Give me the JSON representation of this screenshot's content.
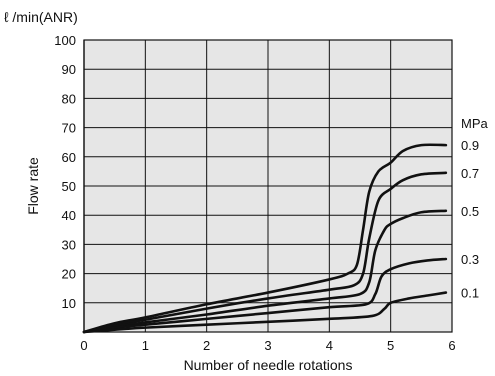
{
  "chart_data": {
    "type": "line",
    "unit_label": "ℓ /min(ANR)",
    "xlabel": "Number of needle rotations",
    "ylabel": "Flow rate",
    "series_unit": "MPa",
    "xlim": [
      0,
      6
    ],
    "ylim": [
      0,
      100
    ],
    "x_ticks": [
      "0",
      "1",
      "2",
      "3",
      "4",
      "5",
      "6"
    ],
    "y_ticks": [
      "10",
      "20",
      "30",
      "40",
      "50",
      "60",
      "70",
      "80",
      "90",
      "100"
    ],
    "grid": true,
    "plot_background": "#e6e6e6",
    "line_color": "#111111",
    "series": [
      {
        "name": "0.9",
        "points": [
          [
            0,
            0
          ],
          [
            0.5,
            3
          ],
          [
            1,
            5
          ],
          [
            2,
            9.5
          ],
          [
            3,
            13.5
          ],
          [
            4,
            18
          ],
          [
            4.3,
            20
          ],
          [
            4.45,
            23
          ],
          [
            4.55,
            35
          ],
          [
            4.65,
            48
          ],
          [
            4.8,
            55
          ],
          [
            5,
            58
          ],
          [
            5.2,
            62
          ],
          [
            5.5,
            64
          ],
          [
            5.9,
            64
          ]
        ]
      },
      {
        "name": "0.7",
        "points": [
          [
            0,
            0
          ],
          [
            0.5,
            2.5
          ],
          [
            1,
            4.2
          ],
          [
            2,
            8
          ],
          [
            3,
            11.5
          ],
          [
            4,
            14.5
          ],
          [
            4.4,
            16
          ],
          [
            4.55,
            20
          ],
          [
            4.65,
            32
          ],
          [
            4.8,
            45
          ],
          [
            5,
            49
          ],
          [
            5.2,
            52
          ],
          [
            5.5,
            54
          ],
          [
            5.9,
            54.5
          ]
        ]
      },
      {
        "name": "0.5",
        "points": [
          [
            0,
            0
          ],
          [
            0.5,
            2
          ],
          [
            1,
            3.3
          ],
          [
            2,
            6
          ],
          [
            3,
            9
          ],
          [
            4,
            11.5
          ],
          [
            4.5,
            13
          ],
          [
            4.65,
            17
          ],
          [
            4.75,
            28
          ],
          [
            4.9,
            35
          ],
          [
            5,
            37
          ],
          [
            5.2,
            39
          ],
          [
            5.5,
            41
          ],
          [
            5.9,
            41.5
          ]
        ]
      },
      {
        "name": "0.3",
        "points": [
          [
            0,
            0
          ],
          [
            0.5,
            1.5
          ],
          [
            1,
            2.5
          ],
          [
            2,
            4.5
          ],
          [
            3,
            6.5
          ],
          [
            4,
            8.5
          ],
          [
            4.6,
            9.5
          ],
          [
            4.75,
            13
          ],
          [
            4.85,
            19
          ],
          [
            5,
            21.5
          ],
          [
            5.3,
            23.5
          ],
          [
            5.6,
            24.5
          ],
          [
            5.9,
            25
          ]
        ]
      },
      {
        "name": "0.1",
        "points": [
          [
            0,
            0
          ],
          [
            0.5,
            0.8
          ],
          [
            1,
            1.5
          ],
          [
            2,
            2.5
          ],
          [
            3,
            3.5
          ],
          [
            4,
            4.5
          ],
          [
            4.7,
            5.5
          ],
          [
            4.9,
            8
          ],
          [
            5,
            10
          ],
          [
            5.3,
            11.5
          ],
          [
            5.6,
            12.5
          ],
          [
            5.9,
            13.5
          ]
        ]
      }
    ]
  }
}
